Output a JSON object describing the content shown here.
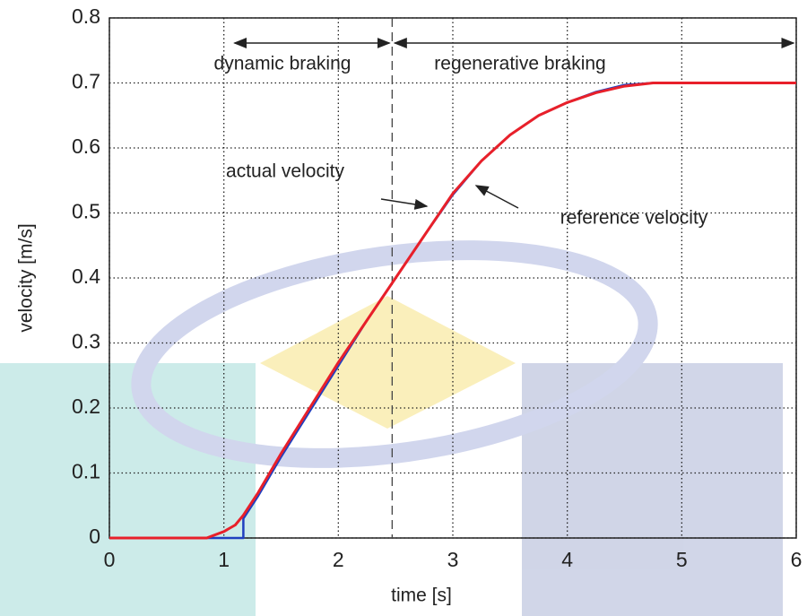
{
  "chart_data": {
    "type": "line",
    "x_label": "time [s]",
    "y_label": "velocity [m/s]",
    "x": [
      0,
      0.5,
      0.85,
      1.0,
      1.1,
      1.17,
      1.17,
      1.3,
      1.5,
      1.75,
      2.0,
      2.25,
      2.5,
      2.75,
      3.0,
      3.25,
      3.5,
      3.75,
      4.0,
      4.25,
      4.5,
      4.75,
      5.0,
      5.25,
      5.5,
      5.75,
      6.0
    ],
    "series": [
      {
        "name": "actual velocity",
        "color": "#e8202a",
        "values": [
          0,
          0,
          0,
          0.01,
          0.02,
          0.035,
          0.035,
          0.07,
          0.13,
          0.2,
          0.27,
          0.335,
          0.4,
          0.465,
          0.53,
          0.58,
          0.62,
          0.65,
          0.67,
          0.685,
          0.695,
          0.7,
          0.7,
          0.7,
          0.7,
          0.7,
          0.7
        ]
      },
      {
        "name": "reference velocity",
        "color": "#1f3fc0",
        "values": [
          0,
          0,
          0,
          0,
          0,
          0,
          0.03,
          0.065,
          0.125,
          0.195,
          0.265,
          0.335,
          0.4,
          0.465,
          0.528,
          0.58,
          0.62,
          0.65,
          0.67,
          0.686,
          0.697,
          0.7,
          0.7,
          0.7,
          0.7,
          0.7,
          0.7
        ]
      }
    ],
    "phases": [
      {
        "label": "dynamic braking",
        "start": 1.07,
        "end": 2.47
      },
      {
        "label": "regenerative braking",
        "start": 2.47,
        "end": 6
      }
    ],
    "boundary_x": 2.47,
    "xlim": [
      0,
      6
    ],
    "xticks": [
      0,
      1,
      2,
      3,
      4,
      5,
      6
    ],
    "ylim": [
      0,
      0.8
    ],
    "yticks": [
      0,
      0.1,
      0.2,
      0.3,
      0.4,
      0.5,
      0.6,
      0.7,
      0.8
    ],
    "grid": true
  }
}
